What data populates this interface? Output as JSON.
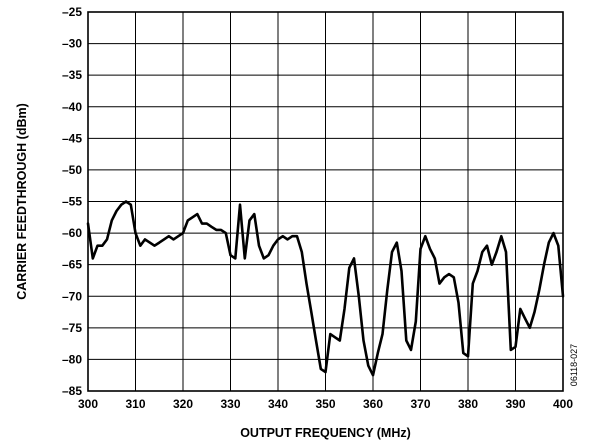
{
  "chart_data": {
    "type": "line",
    "title": "",
    "xlabel": "OUTPUT FREQUENCY (MHz)",
    "ylabel": "CARRIER FEEDTHROUGH (dBm)",
    "xlim": [
      300,
      400
    ],
    "ylim": [
      -85,
      -25
    ],
    "xticks": [
      300,
      310,
      320,
      330,
      340,
      350,
      360,
      370,
      380,
      390,
      400
    ],
    "yticks": [
      -25,
      -30,
      -35,
      -40,
      -45,
      -50,
      -55,
      -60,
      -65,
      -70,
      -75,
      -80,
      -85
    ],
    "xtick_labels": [
      "300",
      "310",
      "320",
      "330",
      "340",
      "350",
      "360",
      "370",
      "380",
      "390",
      "400"
    ],
    "ytick_labels": [
      "–25",
      "–30",
      "–35",
      "–40",
      "–45",
      "–50",
      "–55",
      "–60",
      "–65",
      "–70",
      "–75",
      "–80",
      "–85"
    ],
    "grid": true,
    "legend": "none",
    "series": [
      {
        "line_color": "#000000",
        "x": [
          300,
          301,
          302,
          303,
          304,
          305,
          306,
          307,
          308,
          309,
          310,
          311,
          312,
          313,
          314,
          315,
          316,
          317,
          318,
          319,
          320,
          321,
          322,
          323,
          324,
          325,
          326,
          327,
          328,
          329,
          330,
          331,
          332,
          333,
          334,
          335,
          336,
          337,
          338,
          339,
          340,
          341,
          342,
          343,
          344,
          345,
          346,
          347,
          348,
          349,
          350,
          351,
          352,
          353,
          354,
          355,
          356,
          357,
          358,
          359,
          360,
          361,
          362,
          363,
          364,
          365,
          366,
          367,
          368,
          369,
          370,
          371,
          372,
          373,
          374,
          375,
          376,
          377,
          378,
          379,
          380,
          381,
          382,
          383,
          384,
          385,
          386,
          387,
          388,
          389,
          390,
          391,
          392,
          393,
          394,
          395,
          396,
          397,
          398,
          399,
          400
        ],
        "y": [
          -58.5,
          -64,
          -62,
          -62,
          -61,
          -58,
          -56.5,
          -55.5,
          -55,
          -55.5,
          -60,
          -62,
          -61,
          -61.5,
          -62,
          -61.5,
          -61,
          -60.5,
          -61,
          -60.5,
          -60,
          -58,
          -57.5,
          -57,
          -58.5,
          -58.5,
          -59,
          -59.5,
          -59.5,
          -60,
          -63.5,
          -64,
          -55.5,
          -64,
          -58,
          -57,
          -62,
          -64,
          -63.5,
          -62,
          -61,
          -60.5,
          -61,
          -60.5,
          -60.5,
          -63,
          -68,
          -72.5,
          -77,
          -81.5,
          -82,
          -76,
          -76.5,
          -77,
          -72,
          -65.5,
          -64,
          -70,
          -77,
          -81,
          -82.5,
          -79,
          -76,
          -69,
          -63,
          -61.5,
          -66,
          -77,
          -78.5,
          -74,
          -62.5,
          -60.5,
          -62.5,
          -64,
          -68,
          -67,
          -66.5,
          -67,
          -71,
          -79,
          -79.5,
          -68,
          -66,
          -63,
          -62,
          -65,
          -63,
          -60.5,
          -63,
          -78.5,
          -78,
          -72,
          -73.5,
          -75,
          -72.5,
          -69,
          -65,
          -61.5,
          -60,
          -62,
          -70
        ]
      }
    ],
    "figure_id": "06118-027"
  }
}
